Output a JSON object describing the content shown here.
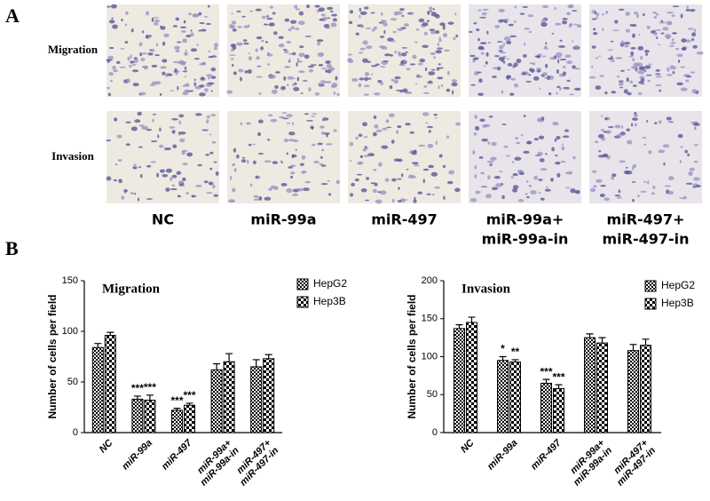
{
  "panel_a": {
    "label": "A",
    "rows": [
      "Migration",
      "Invasion"
    ],
    "columns": [
      [
        "NC"
      ],
      [
        "miR-99a"
      ],
      [
        "miR-497"
      ],
      [
        "miR-99a+",
        "miR-99a-in"
      ],
      [
        "miR-497+",
        "miR-497-in"
      ]
    ]
  },
  "panel_b_label": "B",
  "chart_data": [
    {
      "type": "bar",
      "title": "Migration",
      "y_label": "Number of cells per field",
      "categories": [
        [
          "NC"
        ],
        [
          "miR-99a"
        ],
        [
          "miR-497"
        ],
        [
          "miR-99a+",
          "miR-99a-in"
        ],
        [
          "miR-497+",
          "miR-497-in"
        ]
      ],
      "series": [
        {
          "name": "HepG2",
          "color": "#000000",
          "values": [
            84,
            33,
            22,
            62,
            65
          ],
          "errors": [
            4,
            3,
            2,
            6,
            7
          ],
          "annotations": [
            null,
            "***",
            "***",
            null,
            null
          ]
        },
        {
          "name": "Hep3B",
          "color": "#000000",
          "values": [
            96,
            32,
            27,
            70,
            73
          ],
          "errors": [
            3,
            5,
            2,
            8,
            4
          ],
          "annotations": [
            null,
            "***",
            "***",
            null,
            null
          ]
        }
      ],
      "ylim": [
        0,
        150
      ],
      "yticks": [
        0,
        50,
        100,
        150
      ]
    },
    {
      "type": "bar",
      "title": "Invasion",
      "y_label": "Number of cells per field",
      "categories": [
        [
          "NC"
        ],
        [
          "miR-99a"
        ],
        [
          "miR-497"
        ],
        [
          "miR-99a+",
          "miR-99a-in"
        ],
        [
          "miR-497+",
          "miR-497-in"
        ]
      ],
      "series": [
        {
          "name": "HepG2",
          "color": "#000000",
          "values": [
            137,
            95,
            65,
            125,
            108
          ],
          "errors": [
            5,
            5,
            5,
            5,
            8
          ],
          "annotations": [
            null,
            "*",
            "***",
            null,
            null
          ]
        },
        {
          "name": "Hep3B",
          "color": "#000000",
          "values": [
            145,
            93,
            58,
            118,
            115
          ],
          "errors": [
            7,
            3,
            5,
            7,
            8
          ],
          "annotations": [
            null,
            "**",
            "***",
            null,
            null
          ]
        }
      ],
      "ylim": [
        0,
        200
      ],
      "yticks": [
        0,
        50,
        100,
        150,
        200
      ]
    }
  ]
}
